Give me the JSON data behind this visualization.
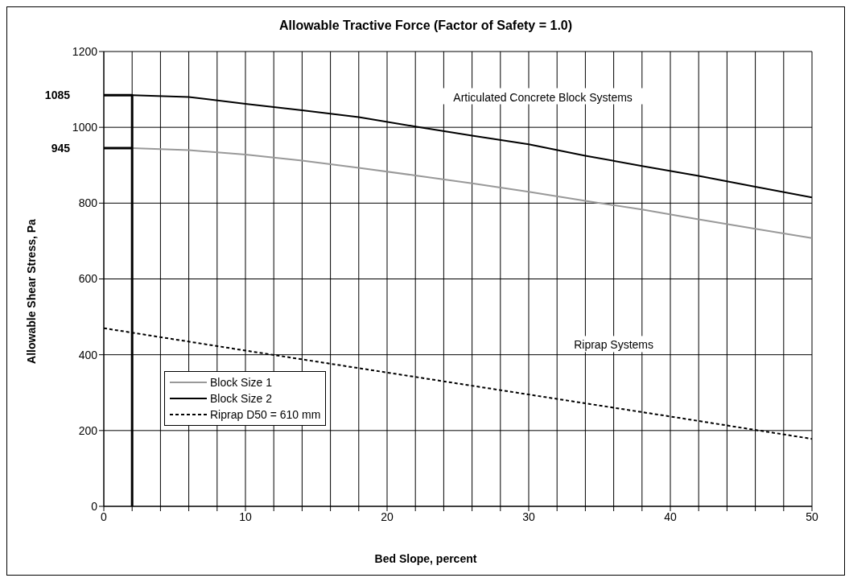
{
  "chart_data": {
    "type": "line",
    "title": "Allowable Tractive Force (Factor of Safety = 1.0)",
    "xlabel": "Bed Slope, percent",
    "ylabel": "Allowable Shear Stress, Pa",
    "xlim": [
      0,
      50
    ],
    "ylim": [
      0,
      1200
    ],
    "xticks": [
      0,
      {
        "value": 2,
        "label": null
      },
      {
        "value": 4,
        "label": null
      },
      {
        "value": 6,
        "label": null
      },
      {
        "value": 8,
        "label": null
      },
      10,
      {
        "value": 12,
        "label": null
      },
      {
        "value": 14,
        "label": null
      },
      {
        "value": 16,
        "label": null
      },
      {
        "value": 18,
        "label": null
      },
      20,
      {
        "value": 22,
        "label": null
      },
      {
        "value": 24,
        "label": null
      },
      {
        "value": 26,
        "label": null
      },
      {
        "value": 28,
        "label": null
      },
      30,
      {
        "value": 32,
        "label": null
      },
      {
        "value": 34,
        "label": null
      },
      {
        "value": 36,
        "label": null
      },
      {
        "value": 38,
        "label": null
      },
      40,
      {
        "value": 42,
        "label": null
      },
      {
        "value": 44,
        "label": null
      },
      {
        "value": 46,
        "label": null
      },
      {
        "value": 48,
        "label": null
      },
      50
    ],
    "yticks": [
      0,
      200,
      400,
      600,
      800,
      1000,
      1200
    ],
    "grid": true,
    "legend": "bottom left",
    "marker": "none",
    "series": [
      {
        "name": "Block Size 1",
        "color": "#999999",
        "line_style": "solid",
        "x": [
          2,
          6,
          10,
          14,
          18,
          22,
          26,
          30,
          34,
          38,
          42,
          46,
          50
        ],
        "values": [
          945,
          940,
          928,
          912,
          893,
          873,
          852,
          830,
          806,
          783,
          757,
          732,
          708
        ]
      },
      {
        "name": "Block Size 2",
        "color": "#000000",
        "line_style": "solid",
        "x": [
          2,
          6,
          10,
          14,
          18,
          22,
          26,
          30,
          34,
          38,
          42,
          46,
          50
        ],
        "values": [
          1085,
          1080,
          1062,
          1045,
          1027,
          1002,
          978,
          955,
          925,
          898,
          872,
          843,
          815
        ]
      },
      {
        "name": "Riprap D50 = 610 mm",
        "color": "#000000",
        "line_style": "dashed",
        "x": [
          0,
          10,
          20,
          30,
          40,
          50
        ],
        "values": [
          470,
          411,
          353,
          295,
          237,
          178
        ]
      },
      {
        "color": "#000000",
        "line_style": "solid",
        "x": [
          0,
          2,
          2
        ],
        "values": [
          1085,
          1085,
          0
        ]
      },
      {
        "color": "#000000",
        "line_style": "solid",
        "x": [
          0,
          2
        ],
        "values": [
          945,
          945
        ]
      }
    ],
    "annotations": [
      "Articulated Concrete Block Systems",
      "Riprap Systems",
      {
        "text": "1085",
        "x": 0,
        "y": 1085
      },
      {
        "text": "945",
        "x": 0,
        "y": 945
      }
    ]
  }
}
